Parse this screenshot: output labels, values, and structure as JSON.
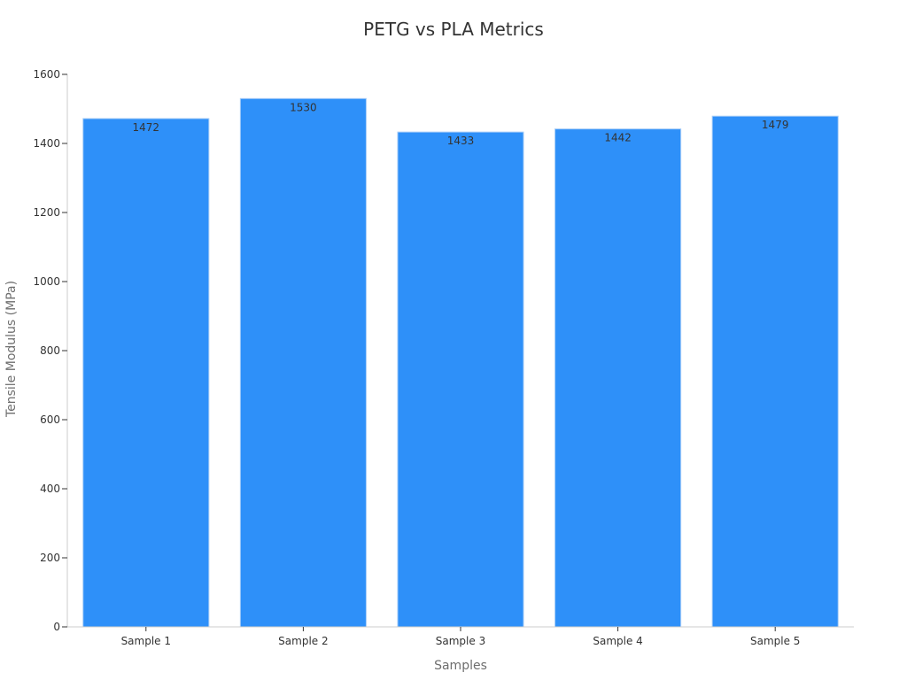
{
  "chart_data": {
    "type": "bar",
    "title": "PETG vs PLA Metrics",
    "xlabel": "Samples",
    "ylabel": "Tensile Modulus (MPa)",
    "categories": [
      "Sample 1",
      "Sample 2",
      "Sample 3",
      "Sample 4",
      "Sample 5"
    ],
    "values": [
      1472,
      1530,
      1433,
      1442,
      1479
    ],
    "value_labels": [
      "1472",
      "1530",
      "1433",
      "1442",
      "1479"
    ],
    "ylim": [
      0,
      1600
    ],
    "yticks": [
      0,
      200,
      400,
      600,
      800,
      1000,
      1200,
      1400,
      1600
    ],
    "ytick_labels": [
      "0",
      "200",
      "400",
      "600",
      "800",
      "1000",
      "1200",
      "1400",
      "1600"
    ],
    "grid": false,
    "legend": "none",
    "colors": {
      "bar": "#2e90f9",
      "bar_edge": "#a8cdf7",
      "axis": "#cccccc",
      "text": "#333333"
    }
  }
}
